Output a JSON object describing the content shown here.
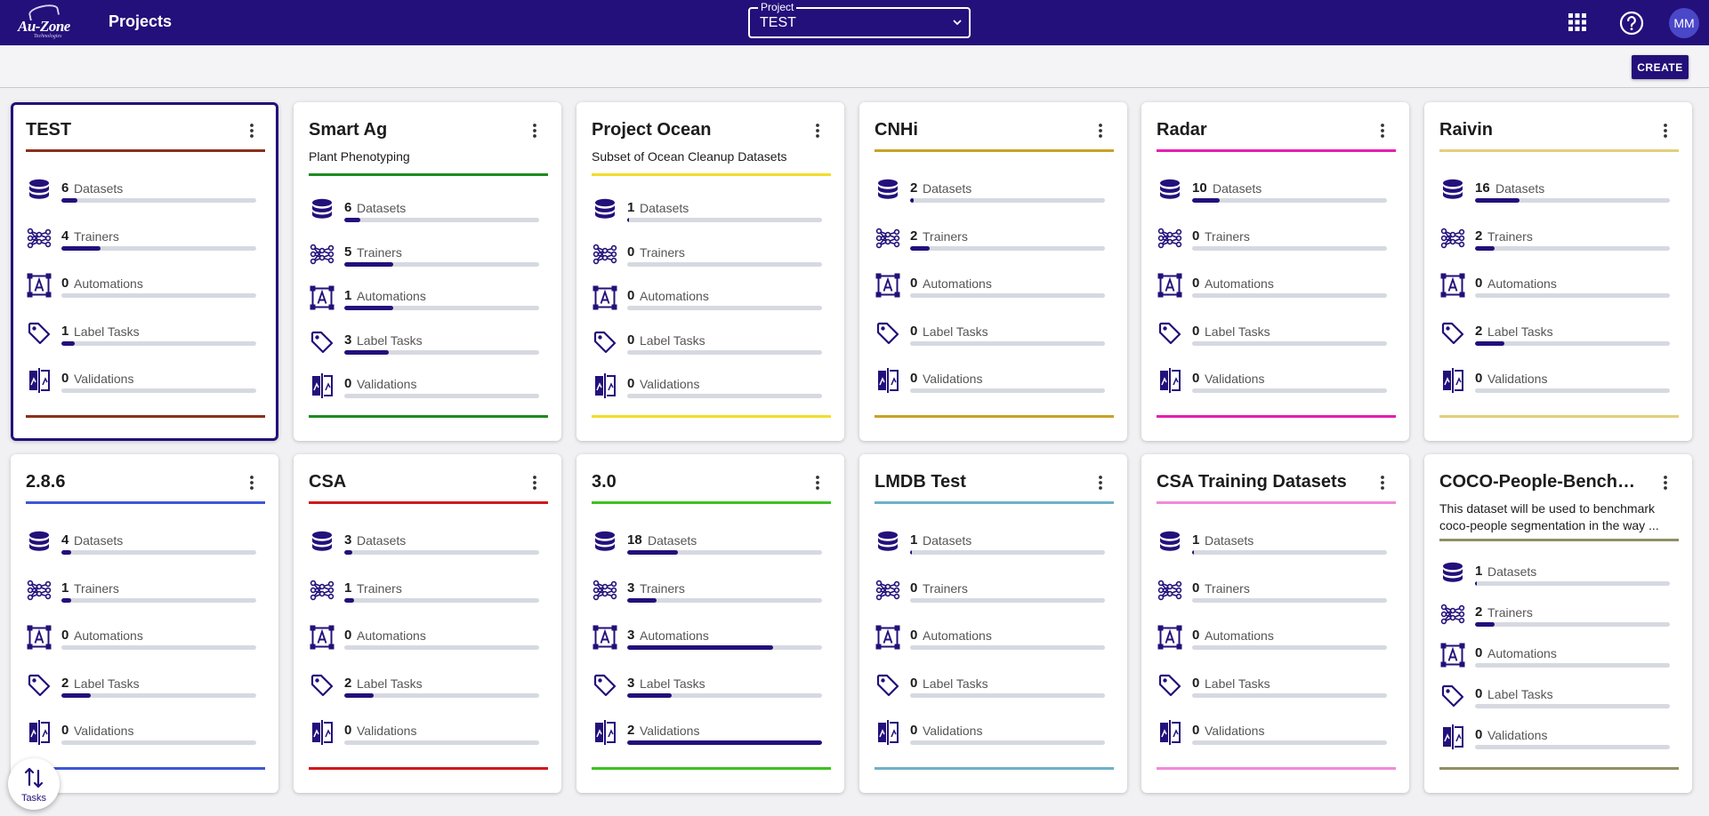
{
  "app": {
    "logo_text": "Au-Zone",
    "logo_sub": "Technologies",
    "page_title": "Projects",
    "project_select": {
      "label": "Project",
      "value": "TEST"
    },
    "user_initials": "MM",
    "create_label": "CREATE",
    "tasks_label": "Tasks",
    "bar_color": "#23107a"
  },
  "stat_labels": {
    "datasets": "Datasets",
    "trainers": "Trainers",
    "automations": "Automations",
    "label_tasks": "Label Tasks",
    "validations": "Validations"
  },
  "projects": [
    {
      "title": "TEST",
      "description": "",
      "accent": "#8b2f1a",
      "selected": true,
      "stats": {
        "datasets": {
          "count": "6",
          "fill": 0.08
        },
        "trainers": {
          "count": "4",
          "fill": 0.2
        },
        "automations": {
          "count": "0",
          "fill": 0
        },
        "label_tasks": {
          "count": "1",
          "fill": 0.07
        },
        "validations": {
          "count": "0",
          "fill": 0
        }
      }
    },
    {
      "title": "Smart Ag",
      "description": "Plant Phenotyping",
      "accent": "#1e8a1e",
      "selected": false,
      "stats": {
        "datasets": {
          "count": "6",
          "fill": 0.08
        },
        "trainers": {
          "count": "5",
          "fill": 0.25
        },
        "automations": {
          "count": "1",
          "fill": 0.25
        },
        "label_tasks": {
          "count": "3",
          "fill": 0.23
        },
        "validations": {
          "count": "0",
          "fill": 0
        }
      }
    },
    {
      "title": "Project Ocean",
      "description": "Subset of Ocean Cleanup Datasets",
      "accent": "#f2dd2a",
      "selected": false,
      "stats": {
        "datasets": {
          "count": "1",
          "fill": 0.01
        },
        "trainers": {
          "count": "0",
          "fill": 0
        },
        "automations": {
          "count": "0",
          "fill": 0
        },
        "label_tasks": {
          "count": "0",
          "fill": 0
        },
        "validations": {
          "count": "0",
          "fill": 0
        }
      }
    },
    {
      "title": "CNHi",
      "description": "",
      "accent": "#c9a227",
      "selected": false,
      "stats": {
        "datasets": {
          "count": "2",
          "fill": 0.02
        },
        "trainers": {
          "count": "2",
          "fill": 0.1
        },
        "automations": {
          "count": "0",
          "fill": 0
        },
        "label_tasks": {
          "count": "0",
          "fill": 0
        },
        "validations": {
          "count": "0",
          "fill": 0
        }
      }
    },
    {
      "title": "Radar",
      "description": "",
      "accent": "#e31fb0",
      "selected": false,
      "stats": {
        "datasets": {
          "count": "10",
          "fill": 0.14
        },
        "trainers": {
          "count": "0",
          "fill": 0
        },
        "automations": {
          "count": "0",
          "fill": 0
        },
        "label_tasks": {
          "count": "0",
          "fill": 0
        },
        "validations": {
          "count": "0",
          "fill": 0
        }
      }
    },
    {
      "title": "Raivin",
      "description": "",
      "accent": "#e3cf7d",
      "selected": false,
      "stats": {
        "datasets": {
          "count": "16",
          "fill": 0.23
        },
        "trainers": {
          "count": "2",
          "fill": 0.1
        },
        "automations": {
          "count": "0",
          "fill": 0
        },
        "label_tasks": {
          "count": "2",
          "fill": 0.15
        },
        "validations": {
          "count": "0",
          "fill": 0
        }
      }
    },
    {
      "title": "2.8.6",
      "description": "",
      "accent": "#3d56d6",
      "selected": false,
      "stats": {
        "datasets": {
          "count": "4",
          "fill": 0.05
        },
        "trainers": {
          "count": "1",
          "fill": 0.05
        },
        "automations": {
          "count": "0",
          "fill": 0
        },
        "label_tasks": {
          "count": "2",
          "fill": 0.15
        },
        "validations": {
          "count": "0",
          "fill": 0
        }
      }
    },
    {
      "title": "CSA",
      "description": "",
      "accent": "#d1181c",
      "selected": false,
      "stats": {
        "datasets": {
          "count": "3",
          "fill": 0.04
        },
        "trainers": {
          "count": "1",
          "fill": 0.05
        },
        "automations": {
          "count": "0",
          "fill": 0
        },
        "label_tasks": {
          "count": "2",
          "fill": 0.15
        },
        "validations": {
          "count": "0",
          "fill": 0
        }
      }
    },
    {
      "title": "3.0",
      "description": "",
      "accent": "#3cc21e",
      "selected": false,
      "stats": {
        "datasets": {
          "count": "18",
          "fill": 0.26
        },
        "trainers": {
          "count": "3",
          "fill": 0.15
        },
        "automations": {
          "count": "3",
          "fill": 0.75
        },
        "label_tasks": {
          "count": "3",
          "fill": 0.23
        },
        "validations": {
          "count": "2",
          "fill": 1
        }
      }
    },
    {
      "title": "LMDB Test",
      "description": "",
      "accent": "#6fb1c7",
      "selected": false,
      "stats": {
        "datasets": {
          "count": "1",
          "fill": 0.01
        },
        "trainers": {
          "count": "0",
          "fill": 0
        },
        "automations": {
          "count": "0",
          "fill": 0
        },
        "label_tasks": {
          "count": "0",
          "fill": 0
        },
        "validations": {
          "count": "0",
          "fill": 0
        }
      }
    },
    {
      "title": "CSA Training Datasets",
      "description": "",
      "accent": "#f08ad8",
      "selected": false,
      "stats": {
        "datasets": {
          "count": "1",
          "fill": 0.01
        },
        "trainers": {
          "count": "0",
          "fill": 0
        },
        "automations": {
          "count": "0",
          "fill": 0
        },
        "label_tasks": {
          "count": "0",
          "fill": 0
        },
        "validations": {
          "count": "0",
          "fill": 0
        }
      }
    },
    {
      "title": "COCO-People-Benchm...",
      "description": "This dataset will be used to benchmark coco-people segmentation in the way ...",
      "accent": "#8f8f66",
      "selected": false,
      "stats": {
        "datasets": {
          "count": "1",
          "fill": 0.01
        },
        "trainers": {
          "count": "2",
          "fill": 0.1
        },
        "automations": {
          "count": "0",
          "fill": 0
        },
        "label_tasks": {
          "count": "0",
          "fill": 0
        },
        "validations": {
          "count": "0",
          "fill": 0
        }
      }
    }
  ]
}
